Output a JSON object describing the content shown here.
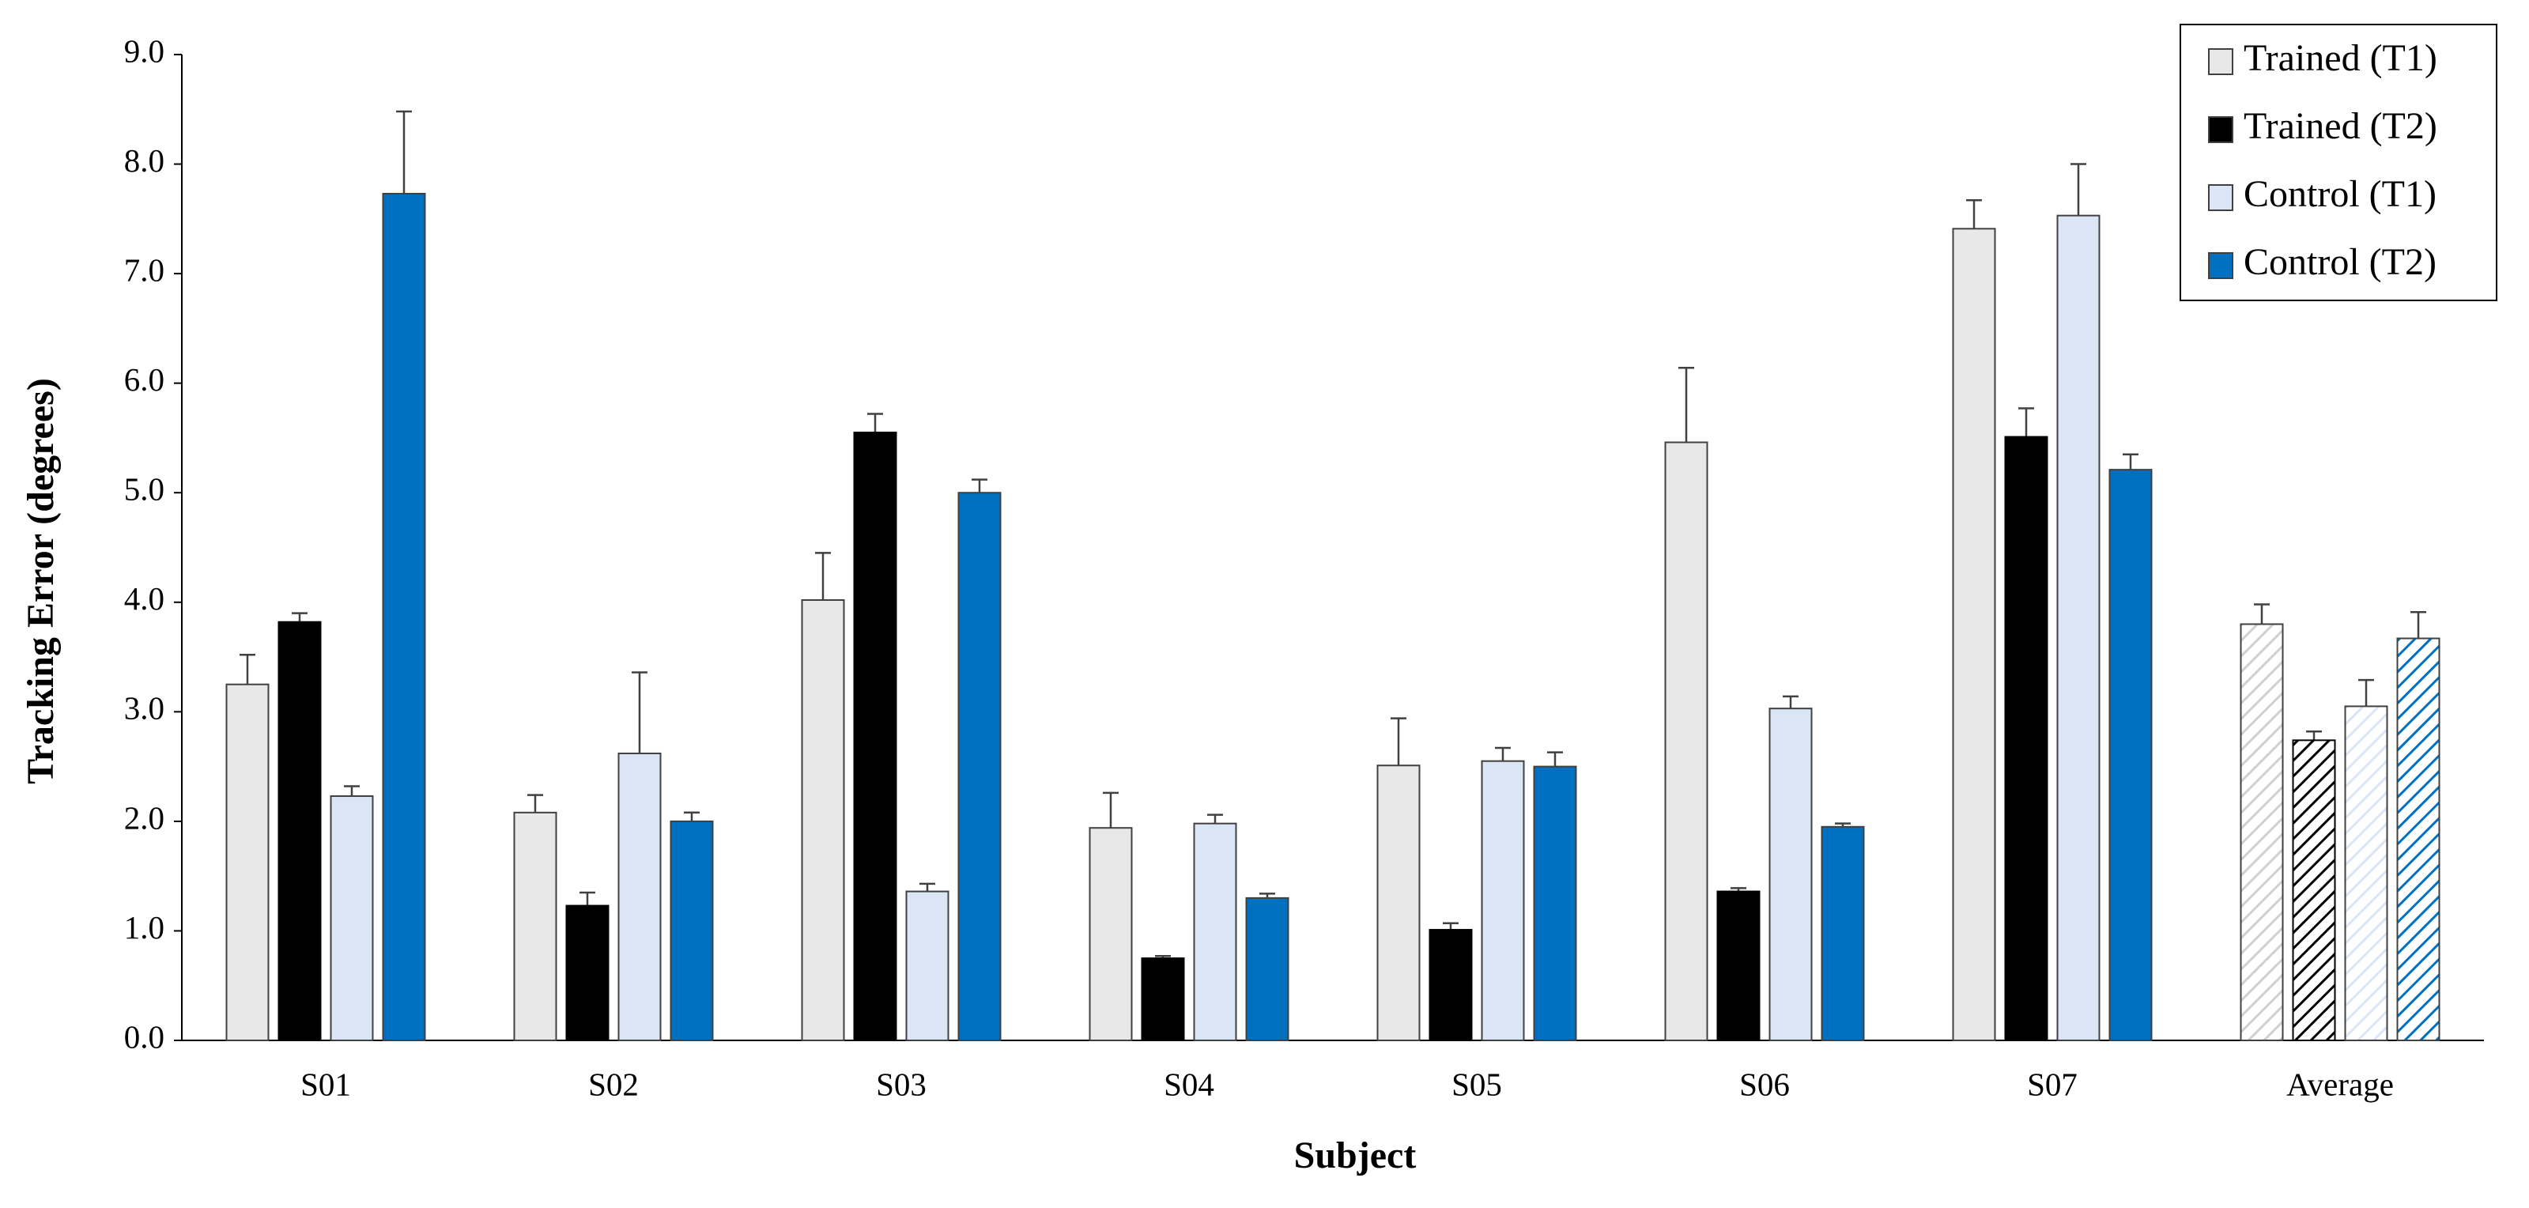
{
  "chart_data": {
    "type": "bar",
    "x_label": "Subject",
    "y_label": "Tracking Error (degrees)",
    "categories": [
      "S01",
      "S02",
      "S03",
      "S04",
      "S05",
      "S06",
      "S07",
      "Average"
    ],
    "hatched": [
      false,
      false,
      false,
      false,
      false,
      false,
      false,
      true
    ],
    "series": [
      {
        "name": "Trained (T1)",
        "color": "#e8e8e8",
        "values": [
          3.25,
          2.08,
          4.02,
          1.94,
          2.51,
          5.46,
          7.41,
          3.8
        ],
        "errors": [
          0.27,
          0.16,
          0.43,
          0.32,
          0.43,
          0.68,
          0.26,
          0.18
        ]
      },
      {
        "name": "Trained (T2)",
        "color": "#000000",
        "values": [
          3.82,
          1.23,
          5.55,
          0.75,
          1.01,
          1.36,
          5.51,
          2.74
        ],
        "errors": [
          0.08,
          0.12,
          0.17,
          0.02,
          0.06,
          0.03,
          0.26,
          0.08
        ]
      },
      {
        "name": "Control (T1)",
        "color": "#dae6f5",
        "values": [
          2.23,
          2.62,
          1.36,
          1.98,
          2.55,
          3.03,
          7.53,
          3.05
        ],
        "errors": [
          0.09,
          0.74,
          0.07,
          0.08,
          0.12,
          0.11,
          0.47,
          0.24
        ]
      },
      {
        "name": "Control (T2)",
        "color": "#0070c0",
        "values": [
          7.73,
          2.0,
          5.0,
          1.3,
          2.5,
          1.95,
          5.21,
          3.67
        ],
        "errors": [
          0.75,
          0.08,
          0.12,
          0.04,
          0.13,
          0.03,
          0.14,
          0.24
        ]
      }
    ],
    "ylim": [
      0,
      9
    ],
    "yticks": [
      {
        "value": 0,
        "label": "0.0"
      },
      {
        "value": 1,
        "label": "1.0"
      },
      {
        "value": 2,
        "label": "2.0"
      },
      {
        "value": 3,
        "label": "3.0"
      },
      {
        "value": 4,
        "label": "4.0"
      },
      {
        "value": 5,
        "label": "5.0"
      },
      {
        "value": 6,
        "label": "6.0"
      },
      {
        "value": 7,
        "label": "7.0"
      },
      {
        "value": 8,
        "label": "8.0"
      },
      {
        "value": 9,
        "label": "9.0"
      }
    ],
    "grid": false,
    "legend": "top-right"
  }
}
